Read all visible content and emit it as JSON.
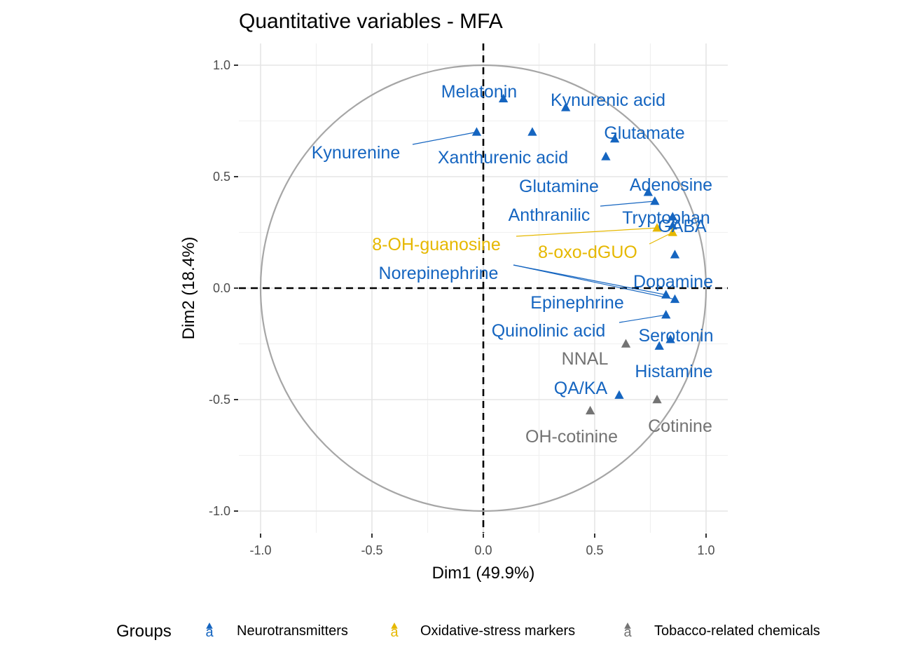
{
  "chart_data": {
    "type": "scatter",
    "title": "Quantitative variables - MFA",
    "xlabel": "Dim1 (49.9%)",
    "ylabel": "Dim2 (18.4%)",
    "xlim": [
      -1.1,
      1.1
    ],
    "ylim": [
      -1.1,
      1.1
    ],
    "x_ticks": [
      "-1.0",
      "-0.5",
      "0.0",
      "0.5",
      "1.0"
    ],
    "y_ticks": [
      "-1.0",
      "-0.5",
      "0.0",
      "0.5",
      "1.0"
    ],
    "grid": true,
    "correlation_circle": true,
    "reference_lines": {
      "x": 0,
      "y": 0,
      "style": "dashed"
    },
    "legend": {
      "title": "Groups",
      "placement": "bottom",
      "key_glyph": "a",
      "entries": [
        {
          "name": "Neurotransmitters",
          "color": "#1565C0"
        },
        {
          "name": "Oxidative-stress markers",
          "color": "#E6B800"
        },
        {
          "name": "Tobacco-related chemicals",
          "color": "#737373"
        }
      ]
    },
    "series": [
      {
        "name": "Neurotransmitters",
        "color": "#1565C0",
        "points": [
          {
            "label": "Melatonin",
            "x": 0.09,
            "y": 0.85
          },
          {
            "label": "Kynurenic acid",
            "x": 0.37,
            "y": 0.81
          },
          {
            "label": "Kynurenine",
            "x": -0.03,
            "y": 0.7
          },
          {
            "label": "Xanthurenic acid",
            "x": 0.22,
            "y": 0.7
          },
          {
            "label": "Glutamate",
            "x": 0.59,
            "y": 0.67
          },
          {
            "label": "Glutamine",
            "x": 0.55,
            "y": 0.59
          },
          {
            "label": "Adenosine",
            "x": 0.74,
            "y": 0.43
          },
          {
            "label": "Anthranilic",
            "x": 0.77,
            "y": 0.39
          },
          {
            "label": "Tryptophan",
            "x": 0.85,
            "y": 0.32
          },
          {
            "label": "GABA",
            "x": 0.85,
            "y": 0.28
          },
          {
            "label": "Dopamine",
            "x": 0.86,
            "y": 0.15
          },
          {
            "label": "Norepinephrine",
            "x": 0.82,
            "y": -0.03
          },
          {
            "label": "Epinephrine",
            "x": 0.86,
            "y": -0.05
          },
          {
            "label": "Quinolinic acid",
            "x": 0.82,
            "y": -0.12
          },
          {
            "label": "Serotonin",
            "x": 0.84,
            "y": -0.23
          },
          {
            "label": "Histamine",
            "x": 0.79,
            "y": -0.26
          },
          {
            "label": "QA/KA",
            "x": 0.61,
            "y": -0.48
          }
        ]
      },
      {
        "name": "Oxidative-stress markers",
        "color": "#E6B800",
        "points": [
          {
            "label": "8-OH-guanosine",
            "x": 0.78,
            "y": 0.27
          },
          {
            "label": "8-oxo-dGUO",
            "x": 0.85,
            "y": 0.25
          }
        ]
      },
      {
        "name": "Tobacco-related chemicals",
        "color": "#737373",
        "points": [
          {
            "label": "NNAL",
            "x": 0.64,
            "y": -0.25
          },
          {
            "label": "Cotinine",
            "x": 0.78,
            "y": -0.5
          },
          {
            "label": "OH-cotinine",
            "x": 0.48,
            "y": -0.55
          }
        ]
      }
    ]
  }
}
